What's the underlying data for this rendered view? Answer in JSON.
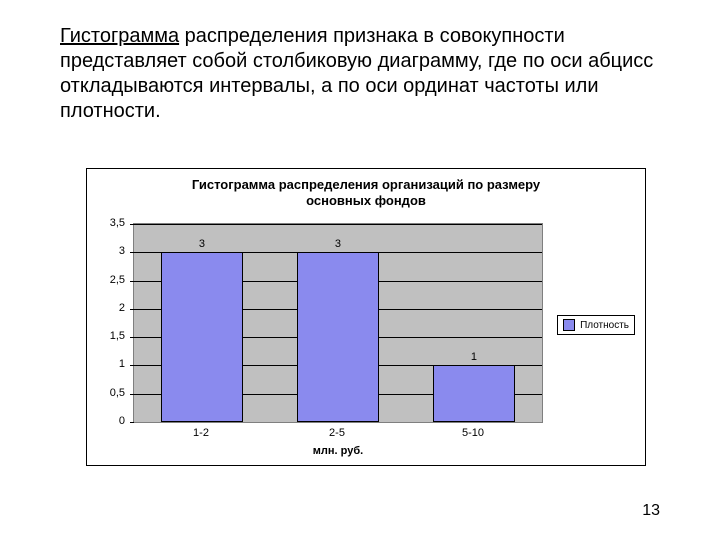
{
  "heading": {
    "underlined_word": "Гистограмма",
    "rest": " распределения признака в совокупности представляет собой столбиковую диаграмму, где по оси абцисс откладываются интервалы, а по оси ординат частоты или плотности."
  },
  "chart": {
    "type": "bar",
    "title_line1": "Гистограмма распределения организаций по размеру",
    "title_line2": "основных фондов",
    "x_title": "млн. руб.",
    "categories": [
      "1-2",
      "2-5",
      "5-10"
    ],
    "values": [
      3,
      3,
      1
    ],
    "value_labels": [
      "3",
      "3",
      "1"
    ],
    "bar_color": "#8a8aee",
    "bar_border": "#000000",
    "plot_bg": "#c0c0c0",
    "grid_color": "#000000",
    "ymin": 0,
    "ymax": 3.5,
    "y_ticks": [
      "0",
      "0,5",
      "1",
      "1,5",
      "2",
      "2,5",
      "3",
      "3,5"
    ],
    "y_tick_values": [
      0,
      0.5,
      1,
      1.5,
      2,
      2.5,
      3,
      3.5
    ],
    "bar_width_pct": 20,
    "legend_label": "Плотность"
  },
  "page_number": "13"
}
